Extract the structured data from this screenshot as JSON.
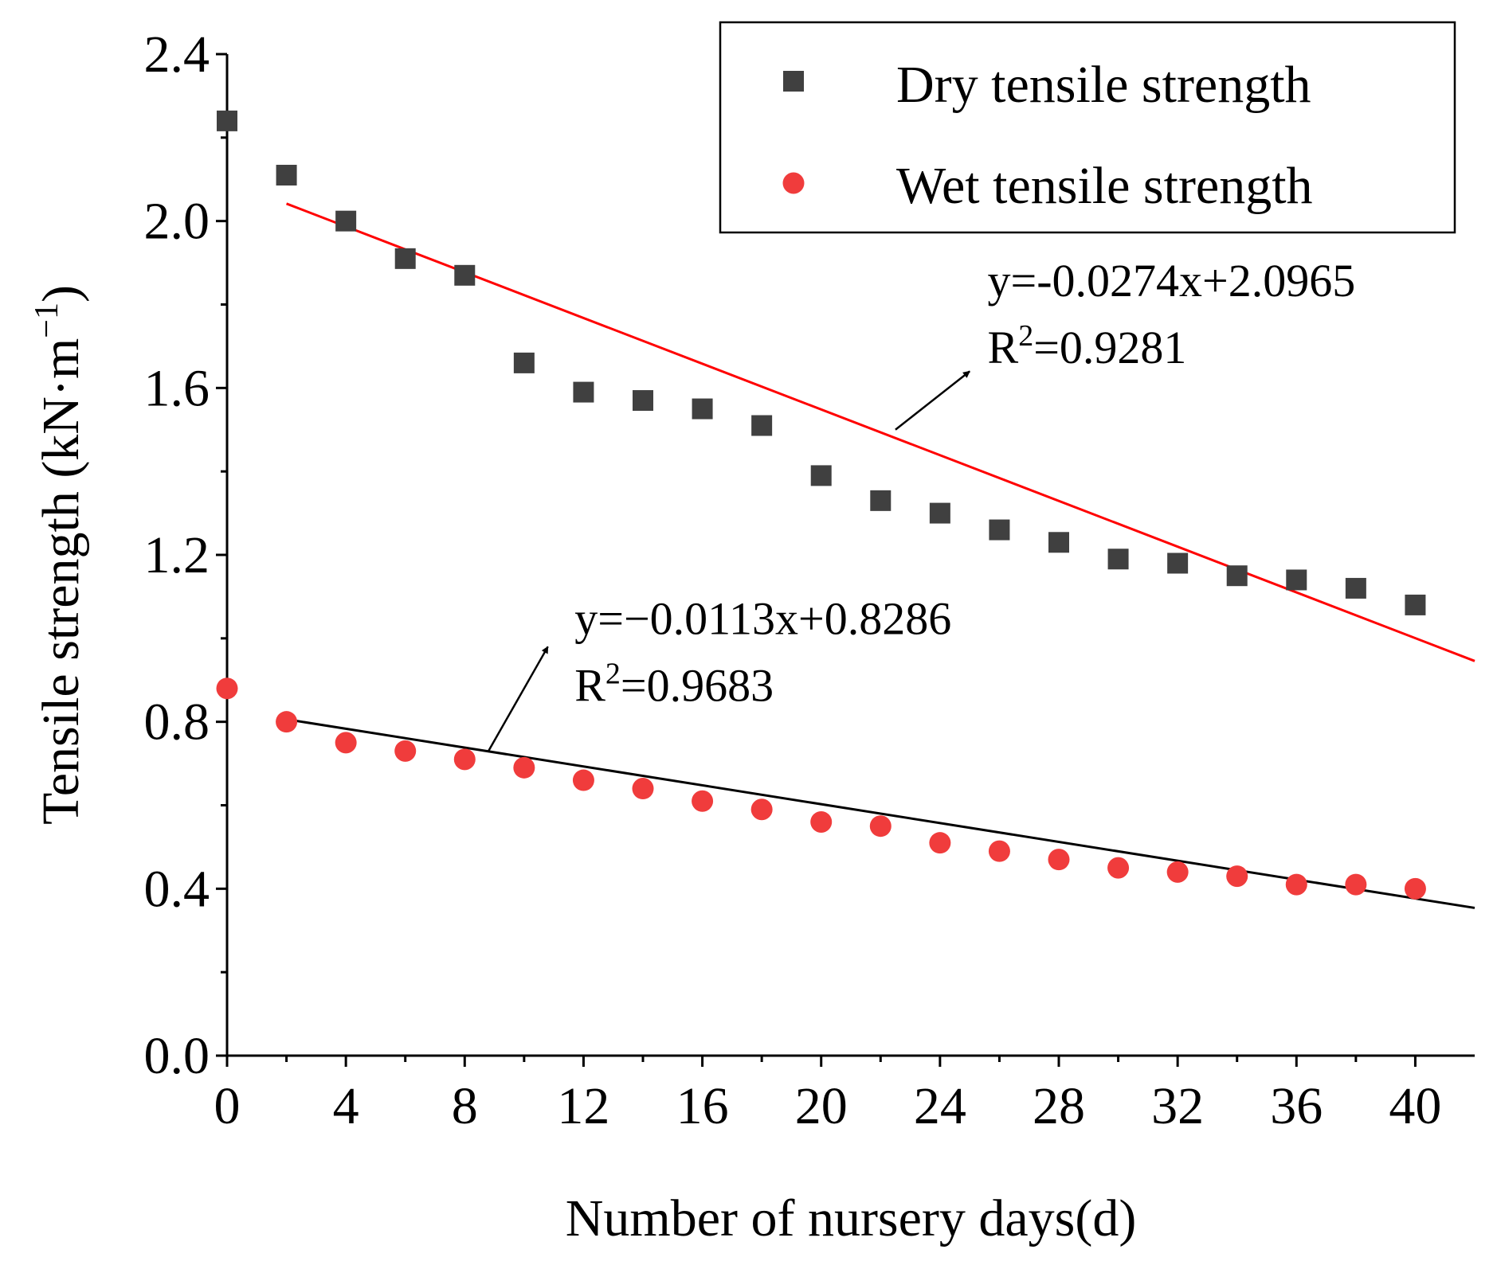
{
  "chart_data": {
    "type": "scatter",
    "title": "",
    "xlabel": "Number of nursery days(d)",
    "ylabel": "Tensile strength (kN·m⁻¹)",
    "ylabel_text": "Tensile strength (kN·m",
    "ylabel_exp": "−1",
    "ylabel_close": ")",
    "xlim": [
      0,
      42
    ],
    "ylim": [
      0,
      2.4
    ],
    "xticks": [
      0,
      4,
      8,
      12,
      16,
      20,
      24,
      28,
      32,
      36,
      40
    ],
    "xtick_labels": [
      "0",
      "4",
      "8",
      "12",
      "16",
      "20",
      "24",
      "28",
      "32",
      "36",
      "40"
    ],
    "yticks": [
      0,
      0.4,
      0.8,
      1.2,
      1.6,
      2.0,
      2.4
    ],
    "ytick_labels": [
      "0.0",
      "0.4",
      "0.8",
      "1.2",
      "1.6",
      "2.0",
      "2.4"
    ],
    "grid": false,
    "legend_position": "top-right",
    "series": [
      {
        "name": "Dry tensile strength",
        "marker": "square",
        "color": "#404040",
        "x": [
          0,
          2,
          4,
          6,
          8,
          10,
          12,
          14,
          16,
          18,
          20,
          22,
          24,
          26,
          28,
          30,
          32,
          34,
          36,
          38,
          40
        ],
        "y": [
          2.24,
          2.11,
          2.0,
          1.91,
          1.87,
          1.66,
          1.59,
          1.57,
          1.55,
          1.51,
          1.39,
          1.33,
          1.3,
          1.26,
          1.23,
          1.19,
          1.18,
          1.15,
          1.14,
          1.12,
          1.08
        ]
      },
      {
        "name": "Wet tensile strength",
        "marker": "circle",
        "color": "#f03c3c",
        "x": [
          0,
          2,
          4,
          6,
          8,
          10,
          12,
          14,
          16,
          18,
          20,
          22,
          24,
          26,
          28,
          30,
          32,
          34,
          36,
          38,
          40
        ],
        "y": [
          0.88,
          0.8,
          0.75,
          0.73,
          0.71,
          0.69,
          0.66,
          0.64,
          0.61,
          0.59,
          0.56,
          0.55,
          0.51,
          0.49,
          0.47,
          0.45,
          0.44,
          0.43,
          0.41,
          0.41,
          0.4
        ]
      }
    ],
    "fit_lines": [
      {
        "name": "Dry fit",
        "color": "#ff0000",
        "slope": -0.0274,
        "intercept": 2.0965,
        "x_range": [
          2,
          42
        ],
        "equation": "y=-0.0274x+2.0965",
        "r2_prefix": "R",
        "r2_sup": "2",
        "r2_value": "=0.9281",
        "arrow_from": [
          22.5,
          1.5
        ],
        "arrow_to": [
          25.0,
          1.64
        ],
        "label_at": [
          25.6,
          1.82
        ]
      },
      {
        "name": "Wet fit",
        "color": "#000000",
        "slope": -0.0113,
        "intercept": 0.8286,
        "x_range": [
          2,
          42
        ],
        "equation": "y=−0.0113x+0.8286",
        "r2_prefix": "R",
        "r2_sup": "2",
        "r2_value": "=0.9683",
        "arrow_from": [
          8.8,
          0.73
        ],
        "arrow_to": [
          10.8,
          0.98
        ],
        "label_at": [
          11.7,
          1.01
        ]
      }
    ]
  }
}
